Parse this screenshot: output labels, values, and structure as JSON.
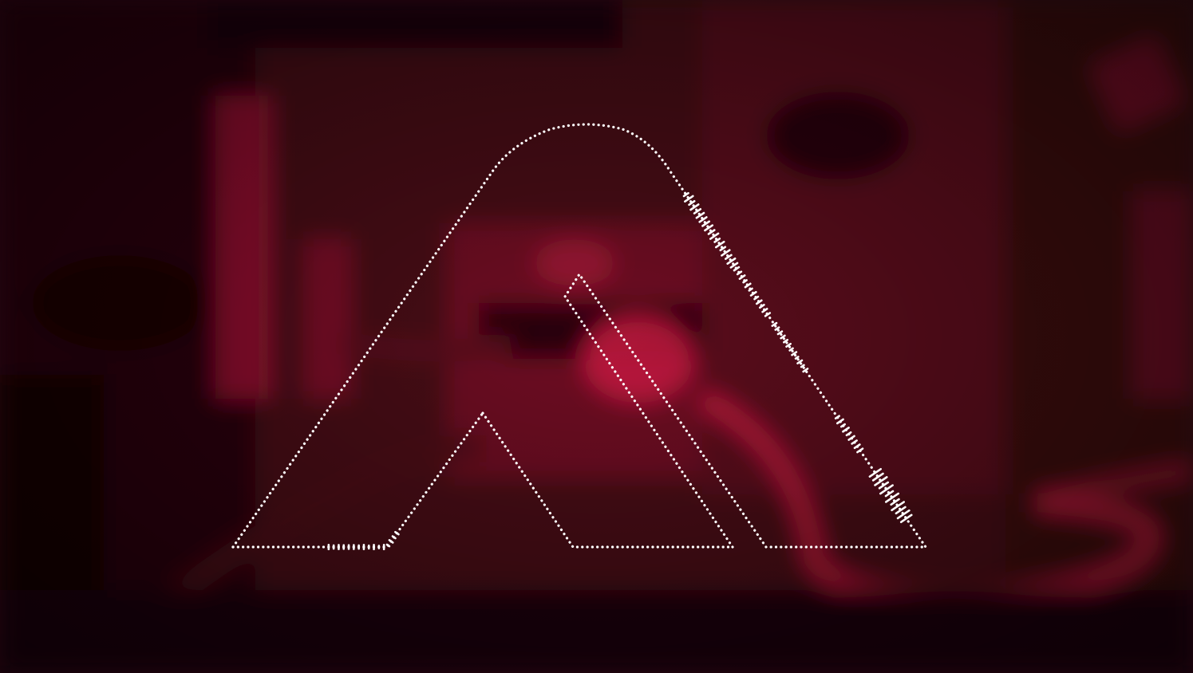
{
  "scene": {
    "description_free": true,
    "tint_color": "#c4173a",
    "shadow_color": "#1a0307",
    "highlight_color": "#e0294f",
    "dot_color": "#ffffff"
  },
  "visualizer": {
    "style": "dotted-outline",
    "logo_shape": "stylized-letter-A",
    "level_min": 0,
    "level_max": 1,
    "active_segments": [
      {
        "path": "outer",
        "from": 0.62,
        "to": 0.7,
        "level": 0.55
      },
      {
        "path": "outer",
        "from": 0.7,
        "to": 0.75,
        "level": 0.35
      },
      {
        "path": "outer",
        "from": 0.76,
        "to": 0.81,
        "level": 0.3
      },
      {
        "path": "outer",
        "from": 0.86,
        "to": 0.9,
        "level": 0.4
      },
      {
        "path": "outer",
        "from": 0.92,
        "to": 0.97,
        "level": 0.85
      },
      {
        "path": "base_left",
        "from": 0.3,
        "to": 0.55,
        "level": 0.25
      }
    ]
  }
}
